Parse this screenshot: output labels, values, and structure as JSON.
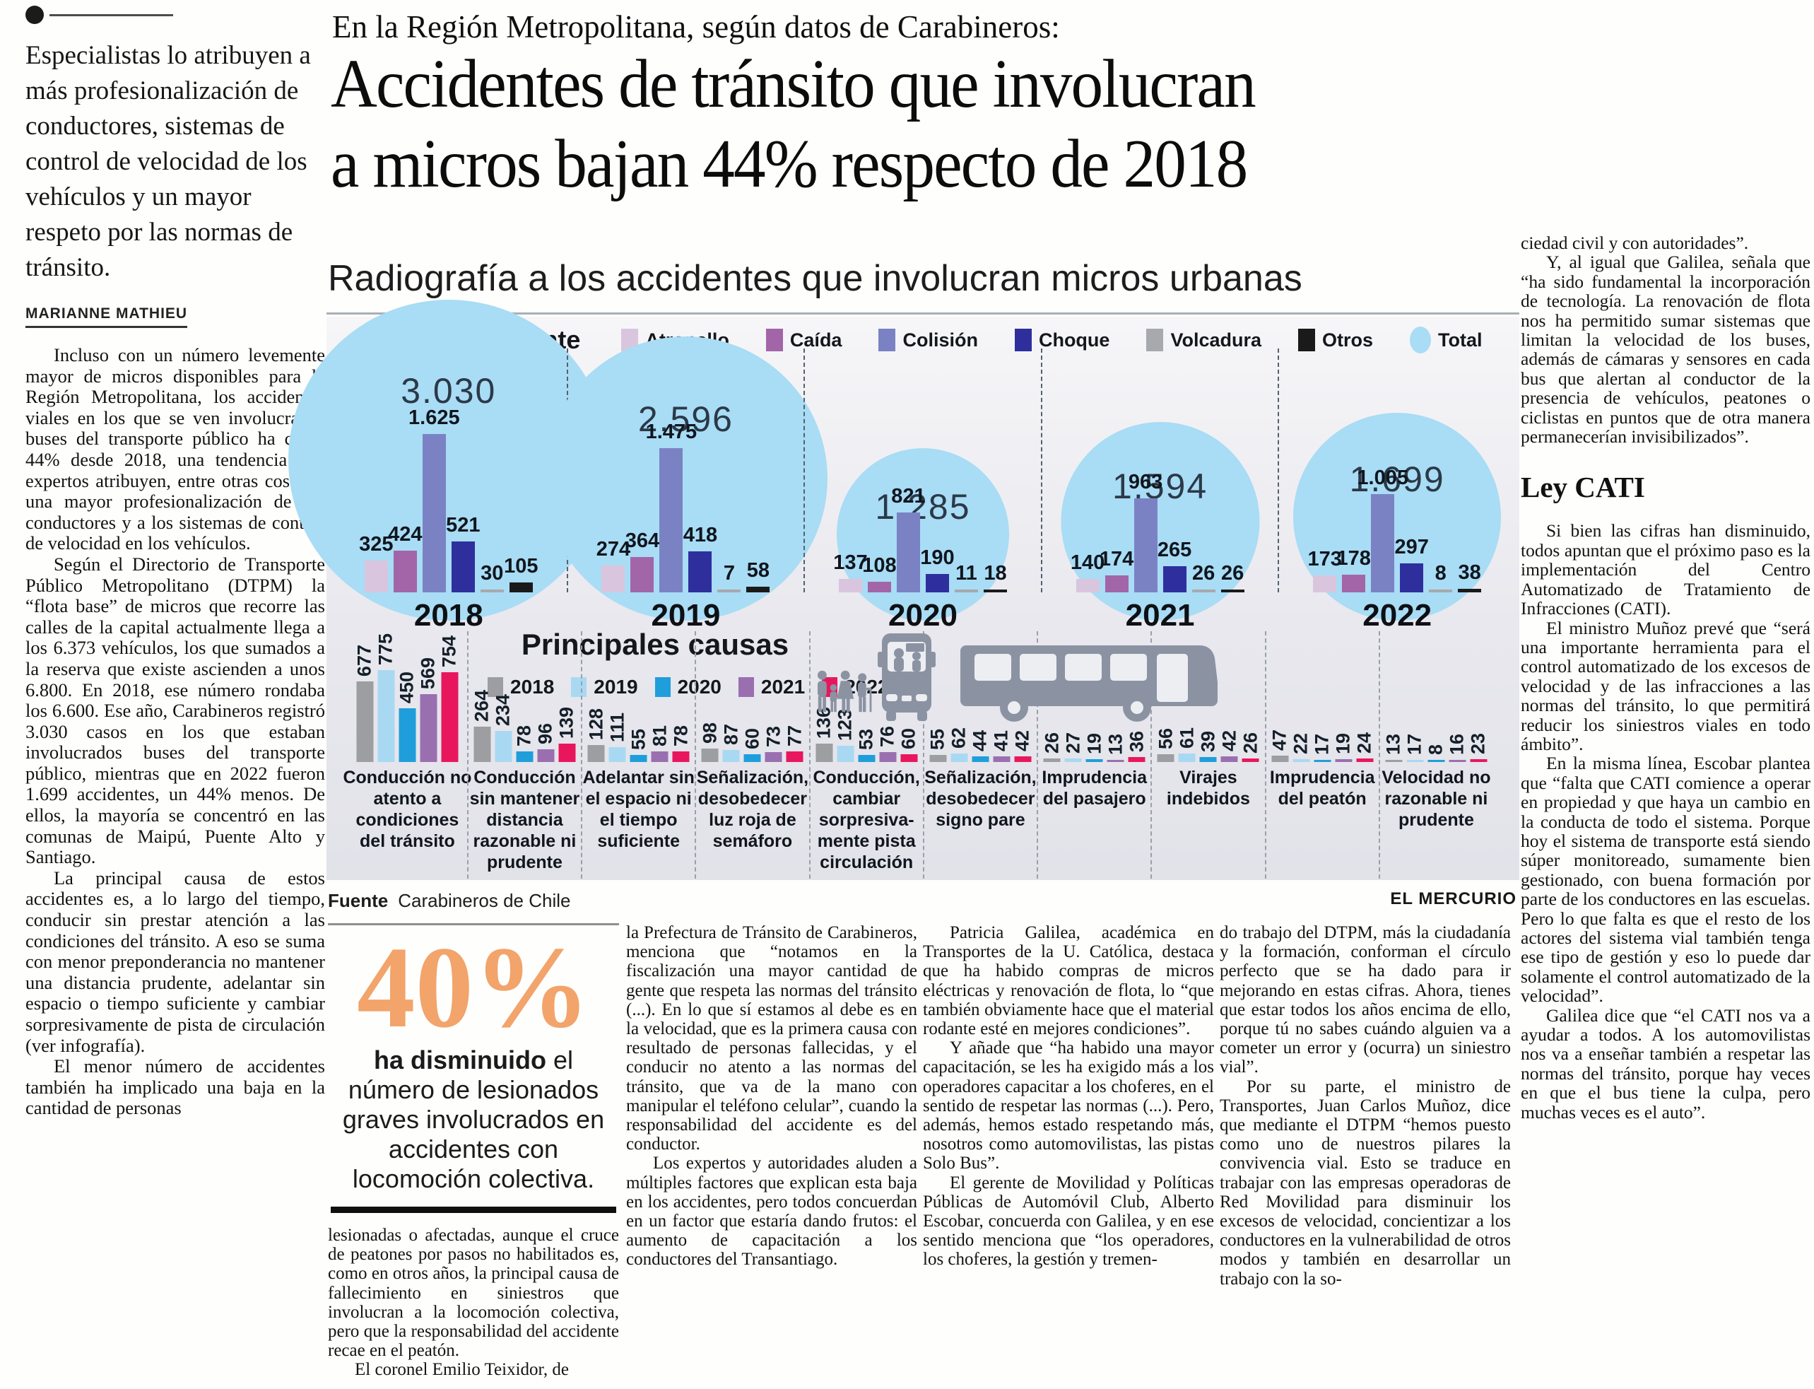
{
  "sidebar": {
    "deck": "Especialistas lo atribuyen a más profesionalización de conductores, sistemas de control de velocidad de los vehículos y un mayor respeto por las normas de tránsito.",
    "byline": "MARIANNE MATHIEU",
    "paragraphs": [
      "Incluso con un número levemente mayor de micros disponibles para la Región Metropolitana, los accidentes viales en los que se ven involucrados buses del transporte público ha caído 44% desde 2018, una tendencia que expertos atribuyen, entre otras cosas, a una mayor profesionalización de los conductores y a los sistemas de control de velocidad en los vehículos.",
      "Según el Directorio de Transporte Público Metropolitano (DTPM) la “flota base” de micros que recorre las calles de la capital actualmente llega a los 6.373 vehículos, los que sumados a la reserva que existe ascienden a unos 6.800. En 2018, ese número rondaba los 6.600. Ese año, Carabineros registró 3.030 casos en los que estaban involucrados buses del transporte público, mientras que en 2022 fueron 1.699 accidentes, un 44% menos. De ellos, la mayoría se concentró en las comunas de Maipú, Puente Alto y Santiago.",
      "La principal causa de estos accidentes es, a lo largo del tiempo, conducir sin prestar atención a las condiciones del tránsito. A eso se suma con menor preponderancia no mantener una distancia prudente, adelantar sin espacio o tiempo suficiente y cambiar sorpresivamente de pista de circulación (ver infografía).",
      "El menor número de accidentes también ha implicado una baja en la cantidad de personas"
    ]
  },
  "article": {
    "kicker": "En la Región Metropolitana, según datos de Carabineros:",
    "headline_line1": "Accidentes de tránsito que involucran",
    "headline_line2": "a micros bajan 44% respecto de 2018"
  },
  "infographic": {
    "title": "Radiografía a los accidentes que involucran micros urbanas",
    "source_label": "Fuente",
    "source_value": "Carabineros de Chile",
    "credit": "EL MERCURIO",
    "accent_circle_color": "#a9dcf5"
  },
  "chart_data": [
    {
      "type": "bar",
      "title": "Tipo de accidente",
      "legend": [
        {
          "label": "Atropello",
          "color": "#d9c6de"
        },
        {
          "label": "Caída",
          "color": "#a266a8"
        },
        {
          "label": "Colisión",
          "color": "#7b82c4"
        },
        {
          "label": "Choque",
          "color": "#2e2f9d"
        },
        {
          "label": "Volcadura",
          "color": "#a7a9ad"
        },
        {
          "label": "Otros",
          "color": "#1a1a1a"
        },
        {
          "label": "Total",
          "color": "#a9dcf5",
          "swatch": "circle"
        }
      ],
      "series_labels": [
        "Atropello",
        "Caída",
        "Colisión",
        "Choque",
        "Volcadura",
        "Otros"
      ],
      "groups": [
        {
          "year": "2018",
          "total": 3030,
          "total_label": "3.030",
          "values": [
            325,
            424,
            1625,
            521,
            30,
            105
          ],
          "value_labels": [
            "325",
            "424",
            "1.625",
            "521",
            "30",
            "105"
          ]
        },
        {
          "year": "2019",
          "total": 2596,
          "total_label": "2.596",
          "values": [
            274,
            364,
            1475,
            418,
            7,
            58
          ],
          "value_labels": [
            "274",
            "364",
            "1.475",
            "418",
            "7",
            "58"
          ]
        },
        {
          "year": "2020",
          "total": 1285,
          "total_label": "1.285",
          "values": [
            137,
            108,
            821,
            190,
            11,
            18
          ],
          "value_labels": [
            "137",
            "108",
            "821",
            "190",
            "11",
            "18"
          ]
        },
        {
          "year": "2021",
          "total": 1594,
          "total_label": "1.594",
          "values": [
            140,
            174,
            963,
            265,
            26,
            26
          ],
          "value_labels": [
            "140",
            "174",
            "963",
            "265",
            "26",
            "26"
          ]
        },
        {
          "year": "2022",
          "total": 1699,
          "total_label": "1.699",
          "values": [
            173,
            178,
            1005,
            297,
            8,
            38
          ],
          "value_labels": [
            "173",
            "178",
            "1.005",
            "297",
            "8",
            "38"
          ]
        }
      ],
      "xlabel": "",
      "ylabel": "",
      "grid": false
    },
    {
      "type": "bar",
      "title": "Principales causas",
      "legend": [
        {
          "label": "2018",
          "color": "#9c9ea1"
        },
        {
          "label": "2019",
          "color": "#a9d9f2"
        },
        {
          "label": "2020",
          "color": "#1f9edb"
        },
        {
          "label": "2021",
          "color": "#9a6fb0"
        },
        {
          "label": "2022",
          "color": "#e8175d"
        }
      ],
      "categories": [
        "Conducción no atento a condiciones del tránsito",
        "Conducción sin mantener distancia razonable ni prudente",
        "Adelantar sin el espacio ni el tiempo suficiente",
        "Señalización, desobedecer luz roja de semáforo",
        "Conducción, cambiar sorpresiva- mente pista circulación",
        "Señalización, desobedecer signo pare",
        "Imprudencia del pasajero",
        "Virajes indebidos",
        "Imprudencia del peatón",
        "Velocidad no razonable ni prudente"
      ],
      "series": [
        {
          "name": "2018",
          "values": [
            677,
            264,
            128,
            98,
            136,
            55,
            26,
            56,
            47,
            13
          ]
        },
        {
          "name": "2019",
          "values": [
            775,
            234,
            111,
            87,
            123,
            62,
            27,
            61,
            22,
            17
          ]
        },
        {
          "name": "2020",
          "values": [
            450,
            78,
            55,
            60,
            53,
            44,
            19,
            39,
            17,
            8
          ]
        },
        {
          "name": "2021",
          "values": [
            569,
            96,
            81,
            73,
            76,
            41,
            13,
            42,
            19,
            16
          ]
        },
        {
          "name": "2022",
          "values": [
            754,
            139,
            78,
            77,
            60,
            42,
            36,
            26,
            24,
            23
          ]
        }
      ],
      "grid": false
    }
  ],
  "pullquote": {
    "big": "40%",
    "bold": "ha disminuido",
    "rest": " el número de lesionados graves involucrados en accidentes con locomoción colectiva.",
    "color": "#f2a46b"
  },
  "columns": {
    "col2": [
      "lesionadas o afectadas, aunque el cruce de peatones por pasos no habilitados es, como en otros años, la principal causa de fallecimiento en siniestros que involucran a la locomoción colectiva, pero que la responsabilidad del accidente recae en el peatón.",
      "El coronel Emilio Teixidor, de"
    ],
    "col3": [
      "la Prefectura de Tránsito de Carabineros, menciona que “notamos en la fiscalización una mayor cantidad de gente que respeta las normas del tránsito (...). En lo que sí estamos al debe es en la velocidad, que es la primera causa con resultado de personas fallecidas, y el conducir no atento a las normas del tránsito, que va de la mano con manipular el teléfono celular”, cuando la responsabilidad del accidente es del conductor.",
      "Los expertos y autoridades aluden a múltiples factores que explican esta baja en los accidentes, pero todos concuerdan en un factor que estaría dando frutos: el aumento de capacitación a los conductores del Transantiago."
    ],
    "col4": [
      "Patricia Galilea, académica en Transportes de la U. Católica, destaca que ha habido compras de micros eléctricas y renovación de flota, lo “que también obviamente hace que el material rodante esté en mejores condiciones”.",
      "Y añade que “ha habido una mayor capacitación, se les ha exigido más a los operadores capacitar a los choferes, en el sentido de respetar las normas (...). Pero, además, hemos estado respetando más, nosotros como automovilistas, las pistas Solo Bus”.",
      "El gerente de Movilidad y Políticas Públicas de Automóvil Club, Alberto Escobar, concuerda con Galilea, y en ese sentido menciona que “los operadores, los choferes, la gestión y tremen-"
    ],
    "col5": [
      "do trabajo del DTPM, más la ciudadanía y la formación, conforman el círculo perfecto que se ha dado para ir mejorando en estas cifras. Ahora, tienes que estar todos los años encima de ello, porque tú no sabes cuándo alguien va a cometer un error y (ocurra) un siniestro vial”.",
      "Por su parte, el ministro de Transportes, Juan Carlos Muñoz, dice que mediante el DTPM “hemos puesto como uno de nuestros pilares la convivencia vial. Esto se traduce en trabajar con las empresas operadoras de Red Movilidad para disminuir los excesos de velocidad, concientizar a los conductores en la vulnerabilidad de otros modos y también en desarrollar un trabajo con la so-"
    ]
  },
  "right_column": {
    "before_subhead": [
      "ciedad civil y con autoridades”.",
      "Y, al igual que Galilea, señala que “ha sido fundamental la incorporación de tecnología. La renovación de flota nos ha permitido sumar sistemas que limitan la velocidad de los buses, además de cámaras y sensores en cada bus que alertan al conductor de la presencia de vehículos, peatones o ciclistas en puntos que de otra manera permanecerían invisibilizados”."
    ],
    "subhead": "Ley CATI",
    "after_subhead": [
      "Si bien las cifras han disminuido, todos apuntan que el próximo paso es la implementación del Centro Automatizado de Tratamiento de Infracciones (CATI).",
      "El ministro Muñoz prevé que “será una importante herramienta para el control automatizado de los excesos de velocidad y de las infracciones a las normas del tránsito, lo que permitirá reducir los siniestros viales en todo ámbito”.",
      "En la misma línea, Escobar plantea que “falta que CATI comience a operar en propiedad y que haya un cambio en la conducta de todo el sistema. Porque hoy el sistema de transporte está siendo súper monitoreado, sumamente bien gestionado, con buena formación por parte de los conductores en las escuelas. Pero lo que falta es que el resto de los actores del sistema vial también tenga ese tipo de gestión y eso lo puede dar solamente el control automatizado de la velocidad”.",
      "Galilea dice que “el CATI nos va a ayudar a todos. A los automovilistas nos va a enseñar también a respetar las normas del tránsito, porque hay veces en que el bus tiene la culpa, pero muchas veces es el auto”."
    ]
  }
}
